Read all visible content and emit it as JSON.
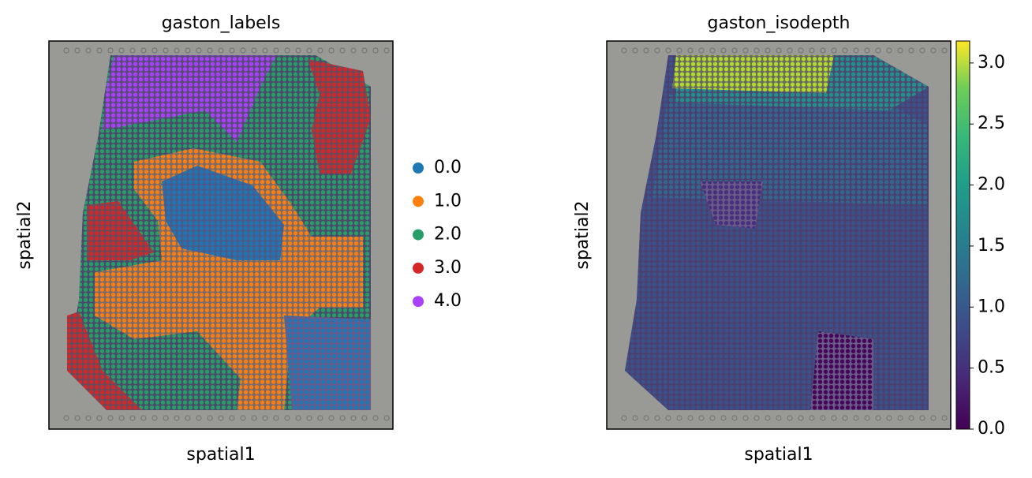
{
  "chart_data": [
    {
      "type": "scatter",
      "title": "gaston_labels",
      "x_label": "spatial1",
      "y_label": "spatial2",
      "legend": {
        "labels": [
          "0.0",
          "1.0",
          "2.0",
          "3.0",
          "4.0"
        ],
        "colors": [
          "#1f77b4",
          "#ff7f0e",
          "#279e68",
          "#d62728",
          "#aa40fc"
        ]
      }
    },
    {
      "type": "scatter",
      "title": "gaston_isodepth",
      "x_label": "spatial1",
      "y_label": "spatial2",
      "colorbar": {
        "ylim": [
          0,
          3.18
        ],
        "yticks": [
          {
            "value": 0,
            "label": "0.0"
          },
          {
            "value": 0.5,
            "label": "0.5"
          },
          {
            "value": 1,
            "label": "1.0"
          },
          {
            "value": 1.5,
            "label": "1.5"
          },
          {
            "value": 2,
            "label": "2.0"
          },
          {
            "value": 2.5,
            "label": "2.5"
          },
          {
            "value": 3,
            "label": "3.0"
          }
        ]
      }
    }
  ]
}
